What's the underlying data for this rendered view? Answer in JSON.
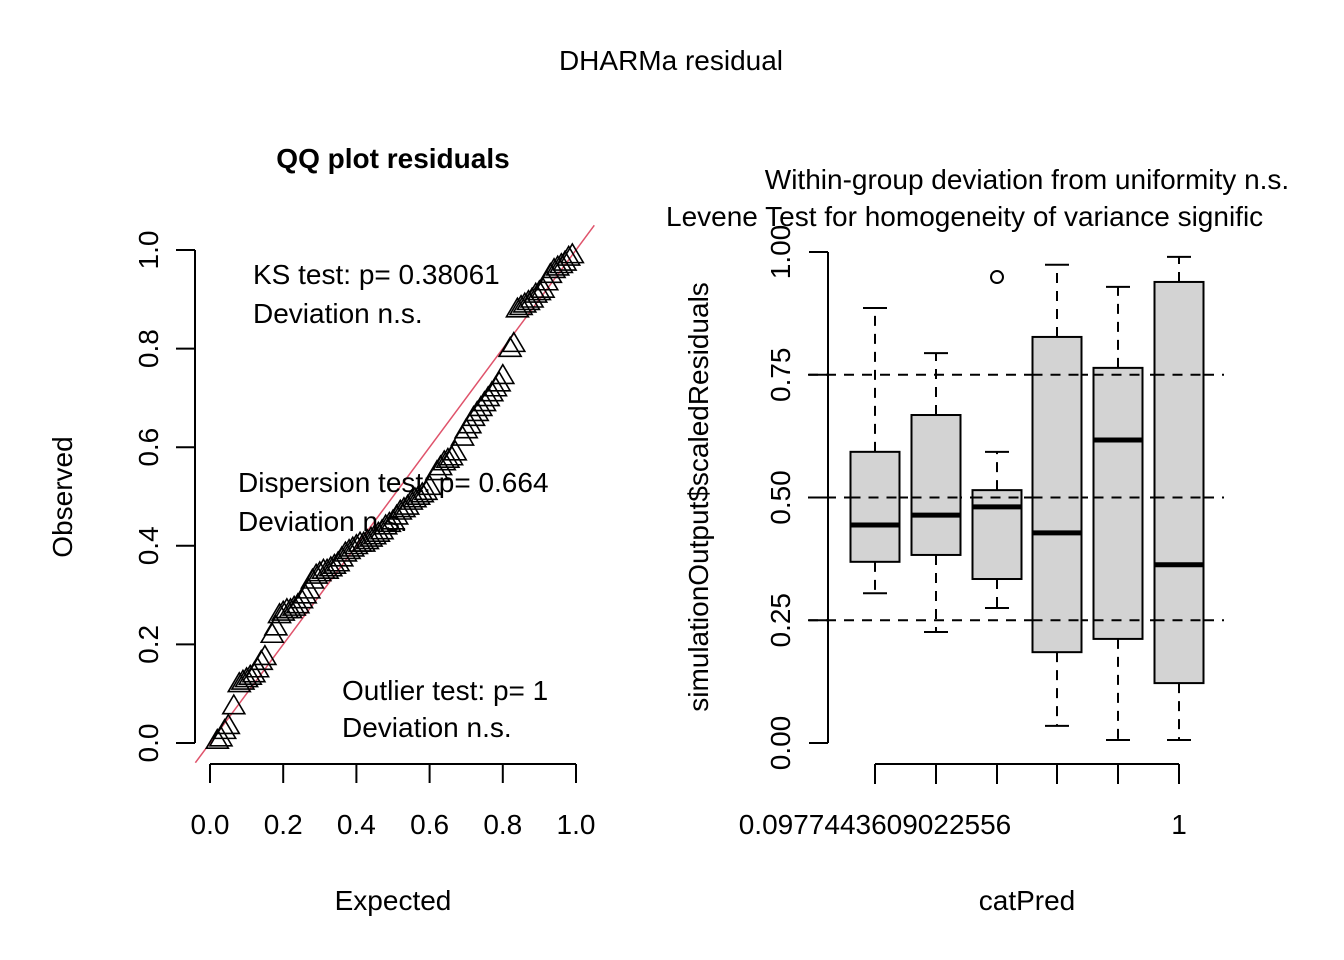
{
  "figure": {
    "main_title": "DHARMa residual"
  },
  "chart_data": [
    {
      "type": "scatter",
      "title": "QQ plot residuals",
      "xlabel": "Expected",
      "ylabel": "Observed",
      "xlim": [
        0,
        1
      ],
      "ylim": [
        0,
        1
      ],
      "x_ticks": [
        "0.0",
        "0.2",
        "0.4",
        "0.6",
        "0.8",
        "1.0"
      ],
      "y_ticks": [
        "0.0",
        "0.2",
        "0.4",
        "0.6",
        "0.8",
        "1.0"
      ],
      "x_tick_values": [
        0,
        0.2,
        0.4,
        0.6,
        0.8,
        1.0
      ],
      "y_tick_values": [
        0,
        0.2,
        0.4,
        0.6,
        0.8,
        1.0
      ],
      "reference_line": {
        "intercept": 0,
        "slope": 1,
        "color": "#DF536B"
      },
      "marker": "triangle",
      "annotations": [
        {
          "line1": "KS test: p= 0.38061",
          "line2": "Deviation  n.s."
        },
        {
          "line1": "Dispersion test: p= 0.664",
          "line2": "Deviation  n.s."
        },
        {
          "line1": "Outlier test: p= 1",
          "line2": "Deviation  n.s."
        }
      ],
      "points": [
        [
          0.02,
          0.005
        ],
        [
          0.03,
          0.01
        ],
        [
          0.04,
          0.025
        ],
        [
          0.05,
          0.035
        ],
        [
          0.065,
          0.075
        ],
        [
          0.08,
          0.12
        ],
        [
          0.09,
          0.125
        ],
        [
          0.1,
          0.13
        ],
        [
          0.11,
          0.135
        ],
        [
          0.12,
          0.14
        ],
        [
          0.13,
          0.15
        ],
        [
          0.14,
          0.165
        ],
        [
          0.15,
          0.175
        ],
        [
          0.17,
          0.22
        ],
        [
          0.18,
          0.235
        ],
        [
          0.19,
          0.26
        ],
        [
          0.2,
          0.265
        ],
        [
          0.21,
          0.27
        ],
        [
          0.22,
          0.27
        ],
        [
          0.23,
          0.275
        ],
        [
          0.24,
          0.28
        ],
        [
          0.25,
          0.29
        ],
        [
          0.26,
          0.3
        ],
        [
          0.27,
          0.31
        ],
        [
          0.28,
          0.33
        ],
        [
          0.29,
          0.34
        ],
        [
          0.3,
          0.345
        ],
        [
          0.31,
          0.35
        ],
        [
          0.32,
          0.35
        ],
        [
          0.33,
          0.355
        ],
        [
          0.34,
          0.36
        ],
        [
          0.35,
          0.365
        ],
        [
          0.36,
          0.375
        ],
        [
          0.37,
          0.385
        ],
        [
          0.38,
          0.39
        ],
        [
          0.39,
          0.395
        ],
        [
          0.4,
          0.4
        ],
        [
          0.41,
          0.405
        ],
        [
          0.42,
          0.405
        ],
        [
          0.43,
          0.41
        ],
        [
          0.44,
          0.415
        ],
        [
          0.45,
          0.42
        ],
        [
          0.46,
          0.425
        ],
        [
          0.47,
          0.43
        ],
        [
          0.48,
          0.44
        ],
        [
          0.49,
          0.445
        ],
        [
          0.5,
          0.45
        ],
        [
          0.51,
          0.46
        ],
        [
          0.52,
          0.47
        ],
        [
          0.53,
          0.475
        ],
        [
          0.54,
          0.48
        ],
        [
          0.55,
          0.49
        ],
        [
          0.56,
          0.495
        ],
        [
          0.57,
          0.5
        ],
        [
          0.58,
          0.505
        ],
        [
          0.59,
          0.51
        ],
        [
          0.6,
          0.52
        ],
        [
          0.62,
          0.55
        ],
        [
          0.63,
          0.56
        ],
        [
          0.64,
          0.57
        ],
        [
          0.65,
          0.575
        ],
        [
          0.66,
          0.58
        ],
        [
          0.67,
          0.59
        ],
        [
          0.69,
          0.62
        ],
        [
          0.7,
          0.635
        ],
        [
          0.71,
          0.645
        ],
        [
          0.72,
          0.66
        ],
        [
          0.73,
          0.67
        ],
        [
          0.74,
          0.68
        ],
        [
          0.75,
          0.69
        ],
        [
          0.76,
          0.7
        ],
        [
          0.77,
          0.71
        ],
        [
          0.78,
          0.72
        ],
        [
          0.79,
          0.73
        ],
        [
          0.8,
          0.745
        ],
        [
          0.82,
          0.8
        ],
        [
          0.83,
          0.81
        ],
        [
          0.84,
          0.88
        ],
        [
          0.85,
          0.885
        ],
        [
          0.86,
          0.89
        ],
        [
          0.87,
          0.895
        ],
        [
          0.88,
          0.9
        ],
        [
          0.89,
          0.91
        ],
        [
          0.9,
          0.915
        ],
        [
          0.91,
          0.92
        ],
        [
          0.92,
          0.935
        ],
        [
          0.93,
          0.95
        ],
        [
          0.94,
          0.96
        ],
        [
          0.95,
          0.965
        ],
        [
          0.96,
          0.97
        ],
        [
          0.97,
          0.975
        ],
        [
          0.98,
          0.985
        ],
        [
          0.99,
          0.99
        ]
      ]
    },
    {
      "type": "box",
      "title_line1": "Within-group deviation from uniformity n.s.",
      "title_line2": "Levene Test for homogeneity of variance signific",
      "title_line2_color": "#FF0000",
      "xlabel": "catPred",
      "ylabel": "simulationOutput$scaledResiduals",
      "ylim": [
        0,
        1
      ],
      "y_ticks": [
        "0.00",
        "0.25",
        "0.50",
        "0.75",
        "1.00"
      ],
      "y_tick_values": [
        0,
        0.25,
        0.5,
        0.75,
        1.0
      ],
      "x_tick_labels": [
        "0.0977443609022556",
        "",
        "",
        "",
        "",
        "1"
      ],
      "reference_lines": [
        0.25,
        0.5,
        0.75
      ],
      "box_fill": "#D3D3D3",
      "groups": [
        {
          "lower": 0.305,
          "q1": 0.369,
          "median": 0.444,
          "q3": 0.593,
          "upper": 0.886,
          "outliers": []
        },
        {
          "lower": 0.226,
          "q1": 0.383,
          "median": 0.464,
          "q3": 0.668,
          "upper": 0.794,
          "outliers": []
        },
        {
          "lower": 0.275,
          "q1": 0.334,
          "median": 0.481,
          "q3": 0.515,
          "upper": 0.593,
          "outliers": [
            0.949
          ]
        },
        {
          "lower": 0.035,
          "q1": 0.185,
          "median": 0.428,
          "q3": 0.827,
          "upper": 0.974,
          "outliers": []
        },
        {
          "lower": 0.006,
          "q1": 0.212,
          "median": 0.617,
          "q3": 0.764,
          "upper": 0.929,
          "outliers": []
        },
        {
          "lower": 0.006,
          "q1": 0.122,
          "median": 0.363,
          "q3": 0.939,
          "upper": 0.99,
          "outliers": []
        }
      ]
    }
  ]
}
